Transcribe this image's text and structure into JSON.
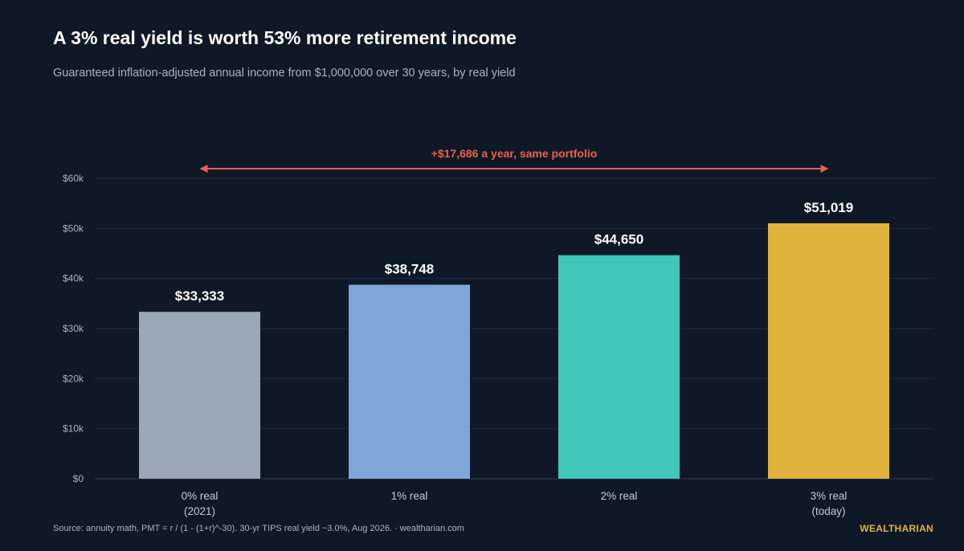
{
  "header": {
    "title": "A 3% real yield is worth 53% more retirement income",
    "subtitle": "Guaranteed inflation-adjusted annual income from $1,000,000 over 30 years, by real yield"
  },
  "footer": {
    "source": "Source: annuity math, PMT = r / (1 - (1+r)^-30). 30-yr TIPS real yield ~3.0%, Aug 2026.   ·   wealtharian.com",
    "brand": "WEALTHARIAN"
  },
  "chart_data": {
    "type": "bar",
    "title": "A 3% real yield is worth 53% more retirement income",
    "subtitle": "Guaranteed inflation-adjusted annual income from $1,000,000 over 30 years, by real yield",
    "categories": [
      [
        "0% real",
        "(2021)"
      ],
      [
        "1% real"
      ],
      [
        "2% real"
      ],
      [
        "3% real",
        "(today)"
      ]
    ],
    "values": [
      33333,
      38748,
      44650,
      51019
    ],
    "value_labels": [
      "$33,333",
      "$38,748",
      "$44,650",
      "$51,019"
    ],
    "colors": [
      "#9aa7b7",
      "#7fa6d9",
      "#41c7b9",
      "#e0b33c"
    ],
    "ylim": [
      0,
      60000
    ],
    "yticks": [
      0,
      10000,
      20000,
      30000,
      40000,
      50000,
      60000
    ],
    "ytick_labels": [
      "$0",
      "$10k",
      "$20k",
      "$30k",
      "$40k",
      "$50k",
      "$60k"
    ],
    "grid": true,
    "annotation": {
      "text": "+$17,686 a year, same portfolio",
      "from_category": 0,
      "to_category": 3,
      "color": "#e8604c"
    }
  }
}
